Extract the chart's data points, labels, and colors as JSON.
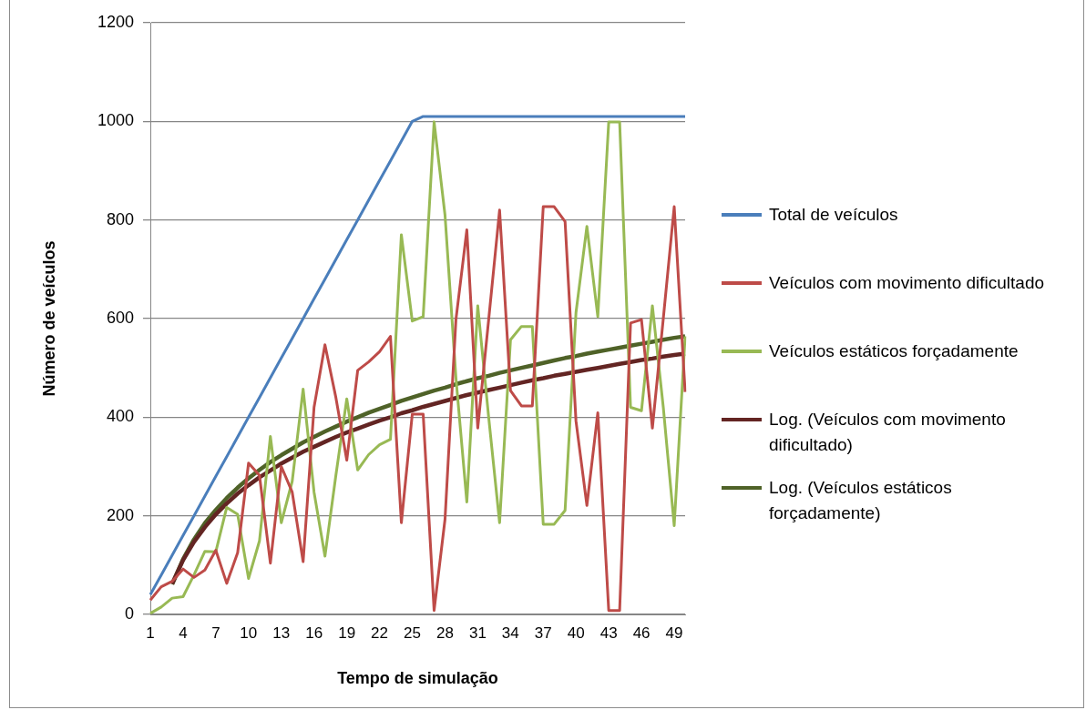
{
  "chart_data": {
    "type": "line",
    "xlabel": "Tempo de simulação",
    "ylabel": "Número de veículos",
    "categories": [
      "1",
      null,
      null,
      "4",
      null,
      null,
      "7",
      null,
      null,
      "10",
      null,
      null,
      "13",
      null,
      null,
      "16",
      null,
      null,
      "19",
      null,
      null,
      "22",
      null,
      null,
      "25",
      null,
      null,
      "28",
      null,
      null,
      "31",
      null,
      null,
      "34",
      null,
      null,
      "37",
      null,
      null,
      "40",
      null,
      null,
      "43",
      null,
      null,
      "46",
      null,
      null,
      "49",
      null
    ],
    "series": [
      {
        "name": "Total de veículos",
        "color": "#4a7ebb",
        "values": [
          40,
          80,
          120,
          160,
          200,
          240,
          280,
          320,
          360,
          400,
          440,
          480,
          520,
          560,
          600,
          640,
          680,
          720,
          760,
          800,
          840,
          880,
          920,
          960,
          1000,
          1010,
          1010,
          1010,
          1010,
          1010,
          1010,
          1010,
          1010,
          1010,
          1010,
          1010,
          1010,
          1010,
          1010,
          1010,
          1010,
          1010,
          1010,
          1010,
          1010,
          1010,
          1010,
          1010,
          1010,
          1010
        ]
      },
      {
        "name": "Veículos com movimento dificultado",
        "color": "#be4b48",
        "values": [
          29,
          56,
          67,
          92,
          75,
          90,
          130,
          63,
          125,
          307,
          282,
          104,
          300,
          248,
          107,
          420,
          547,
          440,
          313,
          495,
          512,
          533,
          564,
          186,
          406,
          406,
          8,
          193,
          598,
          780,
          378,
          598,
          820,
          454,
          423,
          423,
          827,
          827,
          797,
          392,
          221,
          409,
          8,
          8,
          591,
          598,
          378,
          600,
          827,
          451
        ]
      },
      {
        "name": "Veículos estáticos forçadamente",
        "color": "#98b954",
        "values": [
          2,
          15,
          33,
          36,
          80,
          128,
          127,
          217,
          203,
          73,
          149,
          361,
          186,
          270,
          457,
          248,
          118,
          282,
          437,
          293,
          324,
          344,
          355,
          770,
          595,
          604,
          999,
          810,
          480,
          228,
          626,
          400,
          186,
          557,
          584,
          584,
          183,
          183,
          211,
          612,
          787,
          604,
          999,
          999,
          420,
          413,
          626,
          420,
          180,
          564
        ]
      },
      {
        "name": "Log. (Veículos com movimento dificultado)",
        "color": "#632523",
        "values": [
          null,
          null,
          62,
          110,
          147,
          177,
          203,
          225,
          245,
          262,
          278,
          292,
          306,
          318,
          330,
          340,
          350,
          360,
          369,
          377,
          385,
          393,
          400,
          408,
          414,
          421,
          427,
          433,
          439,
          445,
          450,
          455,
          460,
          465,
          470,
          475,
          479,
          484,
          488,
          492,
          496,
          500,
          504,
          508,
          512,
          516,
          519,
          523,
          526,
          529
        ]
      },
      {
        "name": "Log. (Veículos estáticos forçadamente)",
        "color": "#4f6228",
        "values": [
          null,
          null,
          61,
          112,
          152,
          185,
          212,
          236,
          257,
          276,
          293,
          309,
          323,
          336,
          349,
          360,
          371,
          381,
          391,
          400,
          409,
          417,
          425,
          433,
          440,
          447,
          454,
          460,
          467,
          473,
          479,
          484,
          490,
          495,
          500,
          505,
          510,
          515,
          520,
          524,
          529,
          533,
          537,
          541,
          545,
          549,
          553,
          557,
          561,
          564
        ]
      }
    ],
    "ylim": [
      0,
      1200
    ],
    "yticks": [
      0,
      200,
      400,
      600,
      800,
      1000,
      1200
    ],
    "grid": "y",
    "legend": "right",
    "marker": "none"
  }
}
